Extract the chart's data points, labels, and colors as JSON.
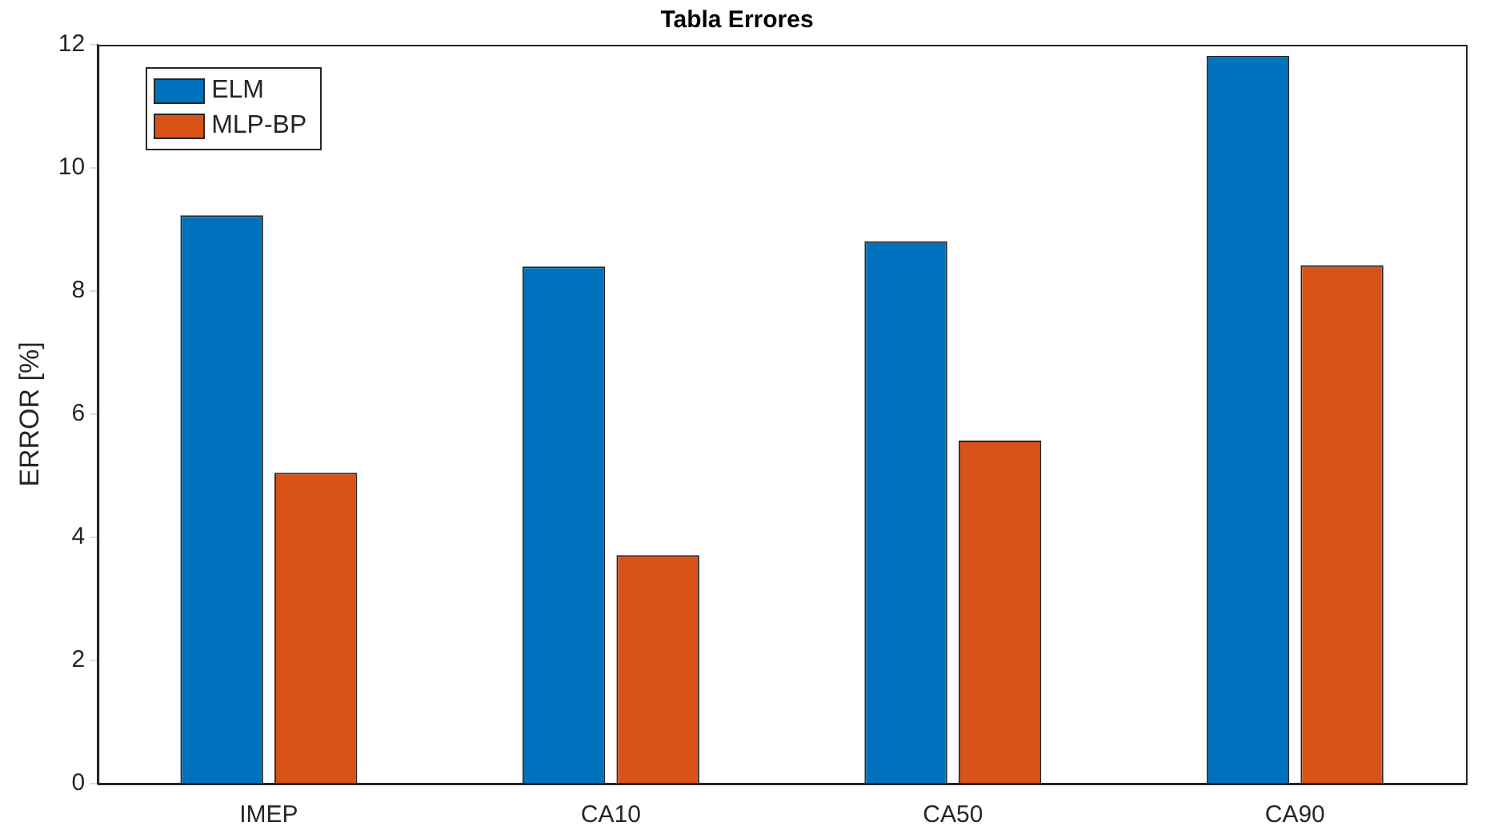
{
  "chart_data": {
    "type": "bar",
    "title": "Tabla Errores",
    "ylabel": "ERROR [%]",
    "categories": [
      "IMEP",
      "CA10",
      "CA50",
      "CA90"
    ],
    "series": [
      {
        "name": "ELM",
        "color": "#0072bd",
        "values": [
          9.23,
          8.4,
          8.81,
          11.82
        ]
      },
      {
        "name": "MLP-BP",
        "color": "#d95319",
        "values": [
          5.05,
          3.71,
          5.57,
          8.42
        ]
      }
    ],
    "ylim": [
      0,
      12
    ],
    "yticks": [
      0,
      2,
      4,
      6,
      8,
      10,
      12
    ],
    "grid": false,
    "legend": "top left"
  }
}
